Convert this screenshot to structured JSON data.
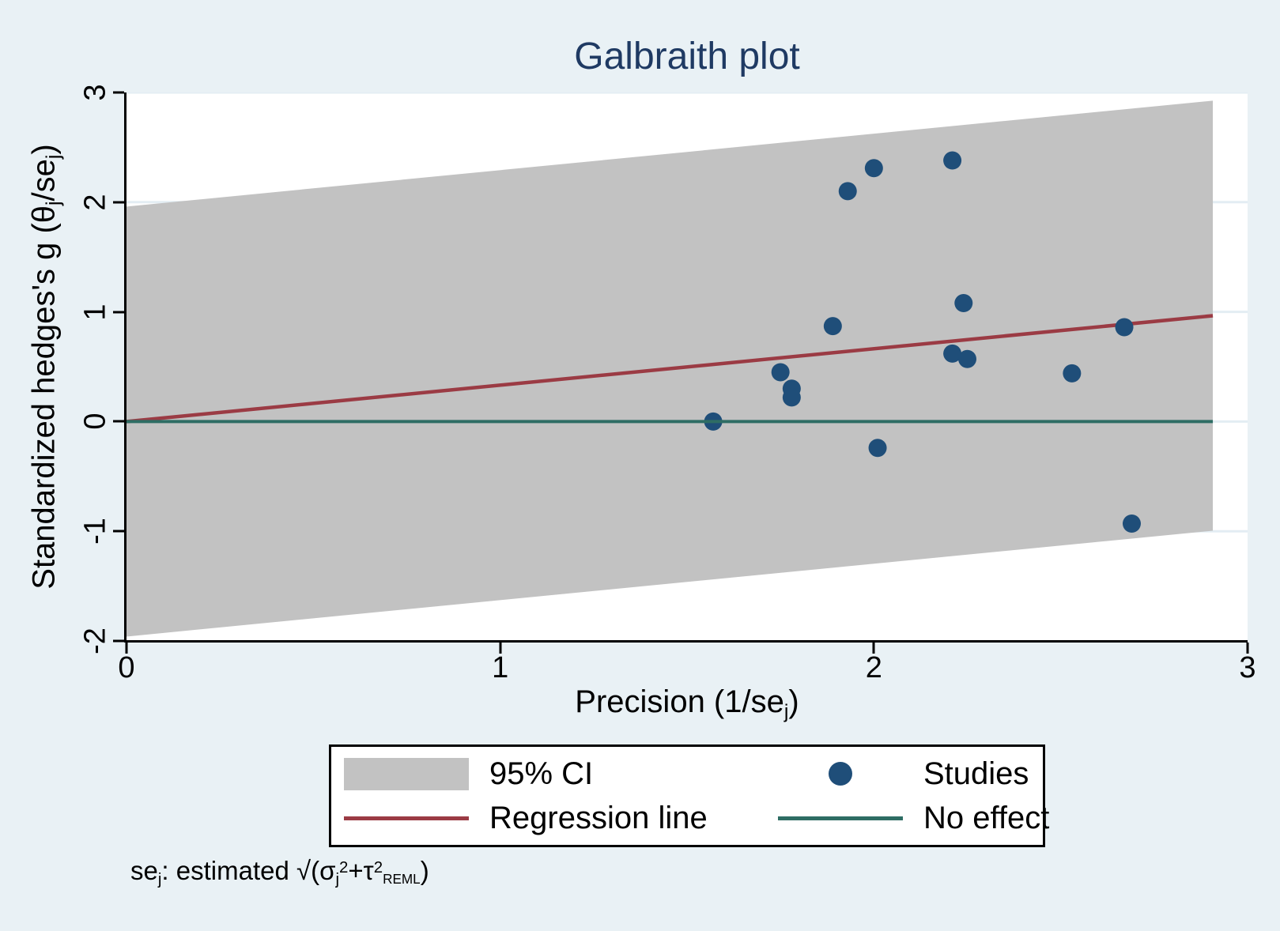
{
  "title": "Galbraith plot",
  "colors": {
    "background": "#e9f1f5",
    "plot_background": "#ffffff",
    "gridline": "#e3edf3",
    "ci_band": "#c2c2c2",
    "studies": "#1f4e79",
    "regression": "#9b3b44",
    "no_effect": "#2e6d64",
    "title_text": "#1f3a63",
    "axis_text": "#000000"
  },
  "y_axis": {
    "title_segments": [
      {
        "t": "Standardized hedges's g (θ"
      },
      {
        "sub": "j"
      },
      {
        "t": "/se"
      },
      {
        "sub": "j"
      },
      {
        "t": ")"
      }
    ],
    "ticks": [
      3,
      2,
      1,
      0,
      -1,
      -2
    ]
  },
  "x_axis": {
    "title_segments": [
      {
        "t": "Precision (1/se"
      },
      {
        "sub": "j"
      },
      {
        "t": ")"
      }
    ],
    "ticks": [
      0,
      1,
      2,
      3
    ]
  },
  "legend": {
    "items": [
      {
        "label": "95% CI",
        "swatch": "ci-band"
      },
      {
        "label": "Studies",
        "swatch": "dot"
      },
      {
        "label": "Regression line",
        "swatch": "line-regression"
      },
      {
        "label": "No effect",
        "swatch": "line-no-effect"
      }
    ]
  },
  "footnote": {
    "segments": [
      {
        "t": "se"
      },
      {
        "sub": "j"
      },
      {
        "t": ": estimated √(σ"
      },
      {
        "sub": "j"
      },
      {
        "sup": "2"
      },
      {
        "t": "+τ"
      },
      {
        "sup": "2"
      },
      {
        "sub": "REML",
        "small": true
      },
      {
        "t": ")"
      }
    ]
  },
  "chart_data": {
    "type": "scatter",
    "title": "Galbraith plot",
    "xlabel": "Precision (1/se_j)",
    "ylabel": "Standardized hedges's g (theta_j/se_j)",
    "xlim": [
      0,
      3
    ],
    "ylim": [
      -2,
      3
    ],
    "x_ticks": [
      0,
      1,
      2,
      3
    ],
    "y_ticks": [
      -2,
      -1,
      0,
      1,
      2,
      3
    ],
    "gridline_y": [
      -1,
      0,
      1,
      2,
      3
    ],
    "grid": true,
    "legend_position": "bottom",
    "marker_radius_px": 11.5,
    "series": [
      {
        "name": "Studies",
        "type": "scatter",
        "points": [
          [
            1.57,
            0.0
          ],
          [
            1.75,
            0.45
          ],
          [
            1.78,
            0.3
          ],
          [
            1.78,
            0.22
          ],
          [
            1.89,
            0.87
          ],
          [
            1.93,
            2.1
          ],
          [
            2.0,
            2.31
          ],
          [
            2.01,
            -0.24
          ],
          [
            2.21,
            2.38
          ],
          [
            2.21,
            0.62
          ],
          [
            2.24,
            1.08
          ],
          [
            2.25,
            0.57
          ],
          [
            2.53,
            0.44
          ],
          [
            2.67,
            0.86
          ],
          [
            2.69,
            -0.93
          ]
        ]
      },
      {
        "name": "Regression line",
        "type": "line",
        "points": [
          [
            0,
            0
          ],
          [
            2.907,
            0.965
          ]
        ]
      },
      {
        "name": "No effect",
        "type": "line",
        "points": [
          [
            0,
            0
          ],
          [
            2.907,
            0
          ]
        ]
      },
      {
        "name": "95% CI",
        "type": "band",
        "polygon": [
          [
            0,
            1.96
          ],
          [
            2.907,
            2.925
          ],
          [
            2.907,
            -0.995
          ],
          [
            0,
            -1.96
          ]
        ]
      }
    ]
  }
}
